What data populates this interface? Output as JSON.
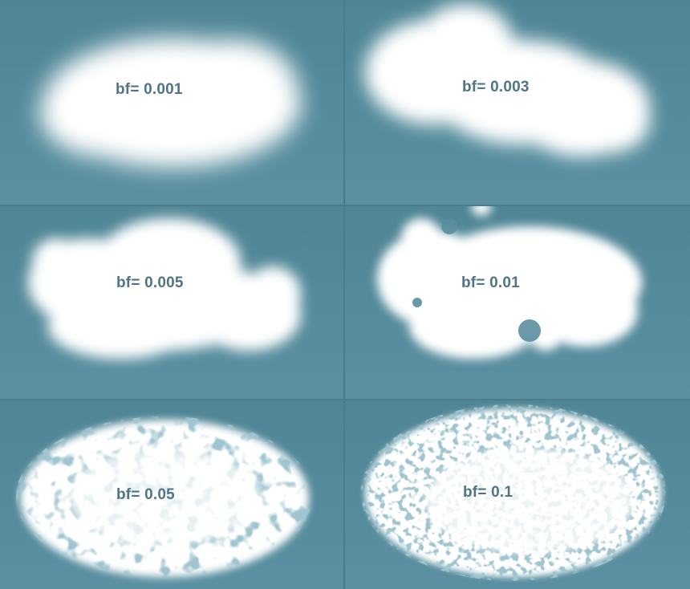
{
  "panels": [
    {
      "label": "bf= 0.001"
    },
    {
      "label": "bf= 0.003"
    },
    {
      "label": "bf= 0.005"
    },
    {
      "label": "bf= 0.01"
    },
    {
      "label": "bf= 0.05"
    },
    {
      "label": "bf= 0.1"
    }
  ],
  "colors": {
    "sky": "#5a8fa0",
    "cloud": "#ffffff",
    "label": "#4f7585"
  }
}
